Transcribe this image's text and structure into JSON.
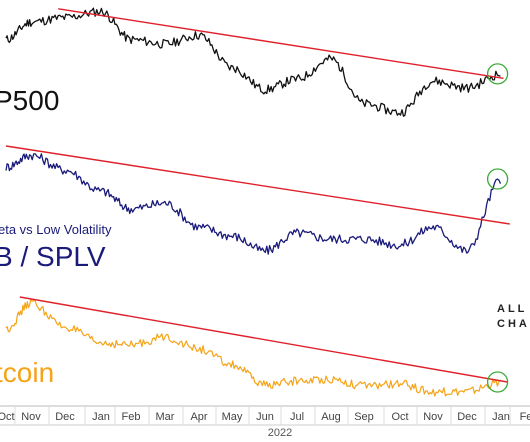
{
  "chart_data": [
    {
      "type": "line",
      "title": "P500",
      "subtitle": "",
      "color": "#111111",
      "x": [
        "Oct",
        "Nov",
        "Dec",
        "Jan",
        "Feb",
        "Mar",
        "Apr",
        "May",
        "Jun",
        "Jul",
        "Aug",
        "Sep",
        "Oct",
        "Nov",
        "Dec",
        "Jan"
      ],
      "series": [
        {
          "values": [
            4450,
            4650,
            4700,
            4770,
            4450,
            4400,
            4500,
            4130,
            3880,
            4000,
            4230,
            3720,
            3620,
            3980,
            3900,
            4060
          ]
        }
      ],
      "ylim": [
        3400,
        4900
      ],
      "trendline": {
        "color": "#e0202a",
        "from": [
          1.8,
          4800
        ],
        "to": [
          15.1,
          4010
        ]
      },
      "breakout_marker": true
    },
    {
      "type": "line",
      "title": "B / SPLV",
      "subtitle": "eta vs Low Volatility",
      "color": "#1a1a7a",
      "x": [
        "Oct",
        "Nov",
        "Dec",
        "Jan",
        "Feb",
        "Mar",
        "Apr",
        "May",
        "Jun",
        "Jul",
        "Aug",
        "Sep",
        "Oct",
        "Nov",
        "Dec",
        "Jan"
      ],
      "series": [
        {
          "values": [
            1.66,
            1.7,
            1.65,
            1.58,
            1.52,
            1.54,
            1.46,
            1.43,
            1.38,
            1.44,
            1.42,
            1.42,
            1.4,
            1.46,
            1.38,
            1.62
          ]
        }
      ],
      "ylim": [
        1.3,
        1.75
      ],
      "trendline": {
        "color": "#e0202a",
        "from": [
          0,
          1.73
        ],
        "to": [
          15.35,
          1.47
        ]
      },
      "breakout_marker": true
    },
    {
      "type": "line",
      "title": "tcoin",
      "subtitle": "",
      "color": "#f5a318",
      "x": [
        "Oct",
        "Nov",
        "Dec",
        "Jan",
        "Feb",
        "Mar",
        "Apr",
        "May",
        "Jun",
        "Jul",
        "Aug",
        "Sep",
        "Oct",
        "Nov",
        "Dec",
        "Jan"
      ],
      "series": [
        {
          "values": [
            48000,
            61000,
            49000,
            41000,
            40000,
            44000,
            38000,
            30000,
            20000,
            22000,
            23000,
            19500,
            20500,
            16500,
            16800,
            21500
          ]
        }
      ],
      "ylim": [
        10000,
        70000
      ],
      "trendline": {
        "color": "#e0202a",
        "from": [
          0.55,
          64000
        ],
        "to": [
          15.25,
          21500
        ]
      },
      "breakout_marker": true
    }
  ],
  "x_axis": {
    "ticks": [
      "Oct",
      "Nov",
      "Dec",
      "Jan",
      "Feb",
      "Mar",
      "Apr",
      "May",
      "Jun",
      "Jul",
      "Aug",
      "Sep",
      "Oct",
      "Nov",
      "Dec",
      "Jan",
      "Fe"
    ],
    "year_label": "2022"
  },
  "watermark": {
    "line1": "ALL",
    "line2": "CHA"
  },
  "colors": {
    "trendline": "#e0202a",
    "marker": "#3aaa35",
    "background": "#ffffff"
  }
}
